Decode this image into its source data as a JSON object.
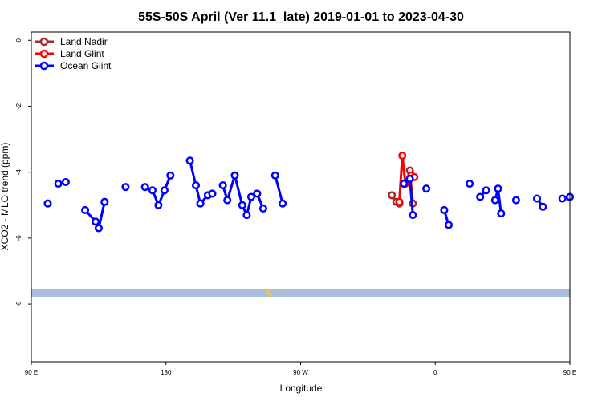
{
  "chart_data": {
    "type": "line",
    "title": "55S-50S April (Ver 11.1_late)   2019-01-01 to 2023-04-30",
    "xlabel": "Longitude",
    "ylabel": "XCO2 - MLO trend (ppm)",
    "xlim": [
      90,
      450
    ],
    "ylim": [
      -9.75,
      0.25
    ],
    "x_ticks": [
      {
        "value": 90,
        "label": "90 E"
      },
      {
        "value": 180,
        "label": "180"
      },
      {
        "value": 270,
        "label": "90 W"
      },
      {
        "value": 360,
        "label": "0"
      },
      {
        "value": 450,
        "label": "90 E"
      },
      {
        "value": 540,
        "label": "180"
      }
    ],
    "y_ticks": [
      {
        "value": 0,
        "label": "0"
      },
      {
        "value": -2,
        "label": "-2"
      },
      {
        "value": -4,
        "label": "-4"
      },
      {
        "value": -6,
        "label": "-6"
      },
      {
        "value": -8,
        "label": "-8"
      }
    ],
    "legend_position": "top-left",
    "series": [
      {
        "name": "Land Nadir",
        "color": "#a52a2a",
        "segments": [
          [
            [
              331,
              -4.7
            ],
            [
              334,
              -4.9
            ],
            [
              336,
              -4.95
            ]
          ],
          [
            [
              343,
              -3.95
            ],
            [
              345,
              -4.95
            ]
          ]
        ]
      },
      {
        "name": "Land Glint",
        "color": "#ff0000",
        "segments": [
          [
            [
              336,
              -4.9
            ],
            [
              338,
              -3.5
            ],
            [
              340,
              -4.35
            ]
          ],
          [
            [
              344,
              -4.1
            ],
            [
              346,
              -4.15
            ]
          ]
        ]
      },
      {
        "name": "Ocean Glint",
        "color": "#0000ff",
        "segments": [
          [
            [
              101,
              -4.95
            ]
          ],
          [
            [
              108,
              -4.35
            ],
            [
              113,
              -4.3
            ]
          ],
          [
            [
              126,
              -5.15
            ],
            [
              133,
              -5.5
            ],
            [
              135,
              -5.7
            ],
            [
              139,
              -4.9
            ]
          ],
          [
            [
              153,
              -4.45
            ]
          ],
          [
            [
              166,
              -4.45
            ],
            [
              171,
              -4.55
            ],
            [
              175,
              -5.0
            ],
            [
              179,
              -4.55
            ],
            [
              183,
              -4.1
            ]
          ],
          [
            [
              196,
              -3.65
            ],
            [
              200,
              -4.4
            ],
            [
              203,
              -4.95
            ],
            [
              208,
              -4.7
            ],
            [
              211,
              -4.65
            ]
          ],
          [
            [
              218,
              -4.4
            ],
            [
              221,
              -4.85
            ],
            [
              226,
              -4.1
            ],
            [
              231,
              -5.0
            ],
            [
              234,
              -5.3
            ],
            [
              237,
              -4.75
            ],
            [
              241,
              -4.65
            ],
            [
              245,
              -5.1
            ]
          ],
          [
            [
              253,
              -4.1
            ],
            [
              258,
              -4.95
            ]
          ],
          [
            [
              339,
              -4.35
            ],
            [
              343,
              -4.2
            ],
            [
              345,
              -5.3
            ]
          ],
          [
            [
              354,
              -4.5
            ]
          ],
          [
            [
              366,
              -5.15
            ],
            [
              369,
              -5.6
            ]
          ],
          [
            [
              383,
              -4.35
            ]
          ],
          [
            [
              390,
              -4.75
            ],
            [
              394,
              -4.55
            ]
          ],
          [
            [
              400,
              -4.85
            ],
            [
              402,
              -4.5
            ],
            [
              404,
              -5.25
            ]
          ],
          [
            [
              414,
              -4.85
            ]
          ],
          [
            [
              428,
              -4.8
            ],
            [
              432,
              -5.05
            ]
          ],
          [
            [
              445,
              -4.8
            ],
            [
              450,
              -4.75
            ]
          ]
        ]
      }
    ]
  }
}
